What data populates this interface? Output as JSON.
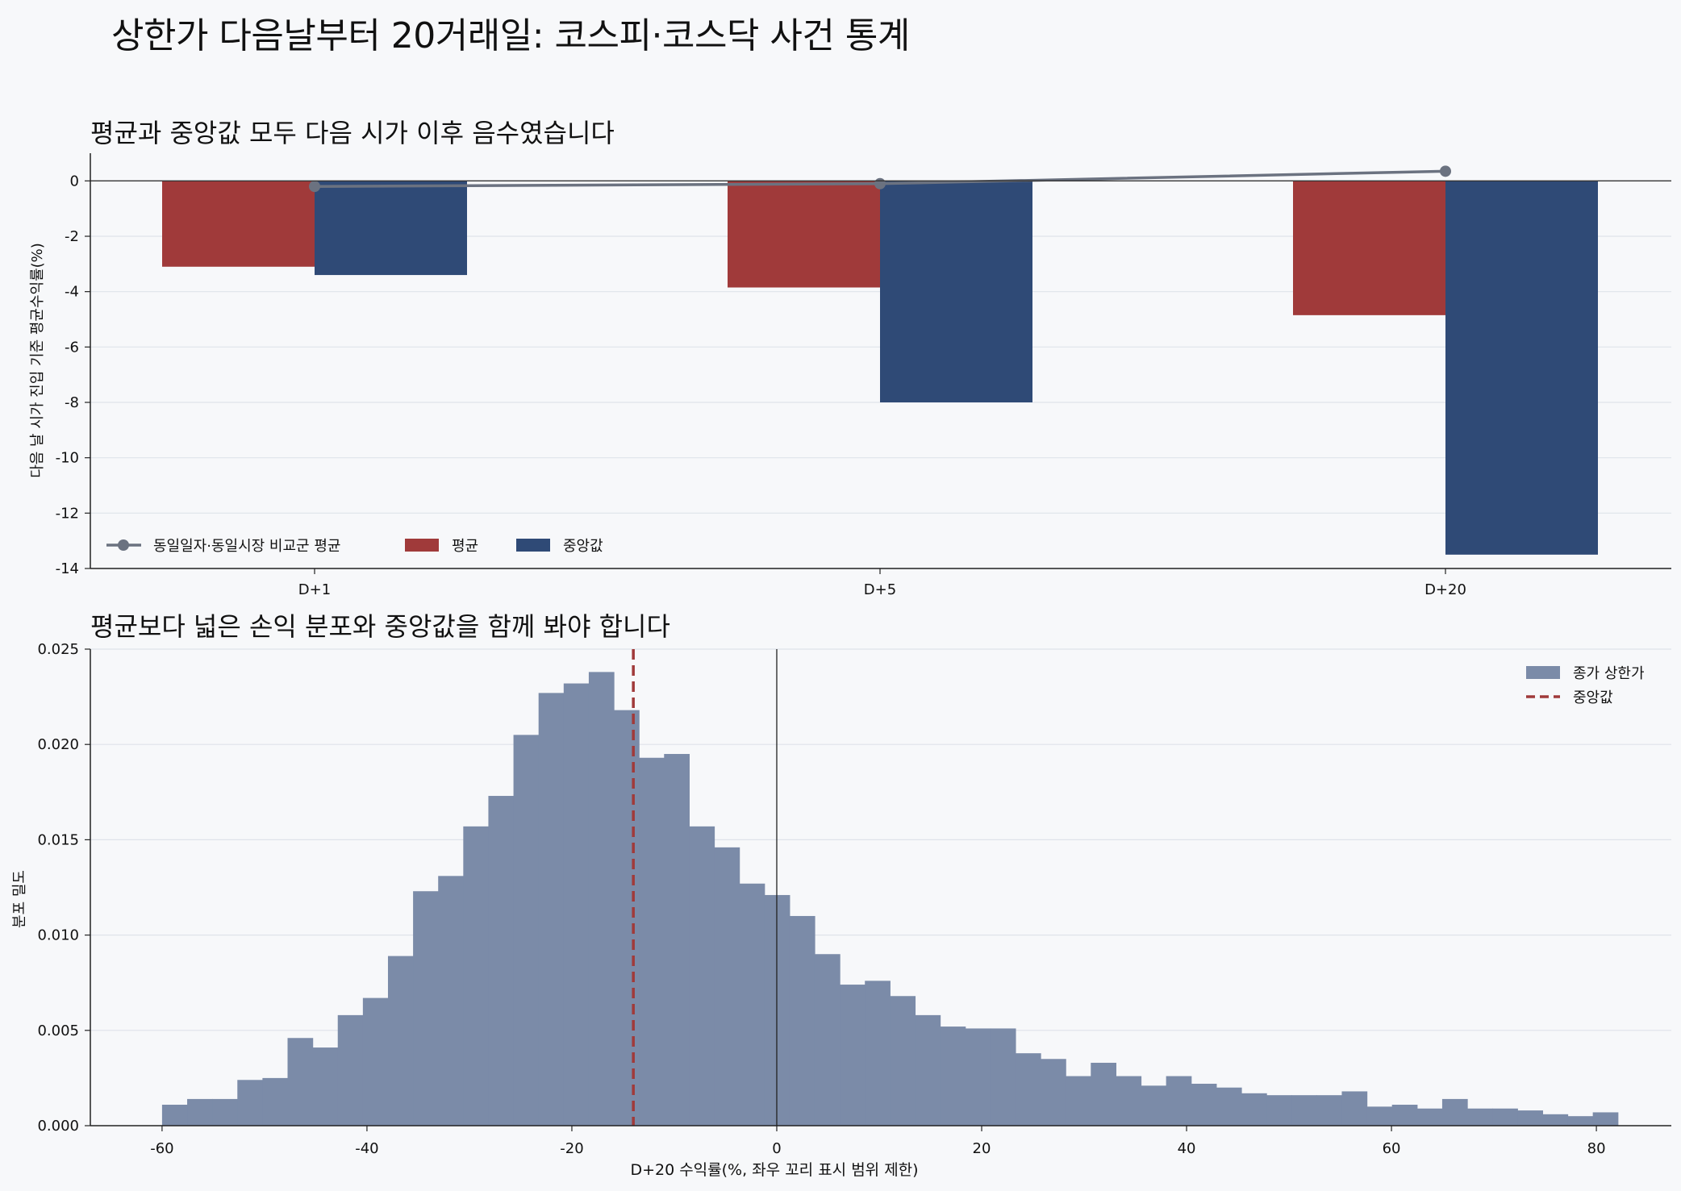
{
  "figure": {
    "title": "상한가 다음날부터 20거래일: 코스피·코스닥 사건 통계"
  },
  "chart_data": [
    {
      "type": "bar",
      "title": "평균과 중앙값 모두 다음 시가 이후 음수였습니다",
      "ylabel": "다음 날 시가 진입 기준 평균수익률(%)",
      "categories": [
        "D+1",
        "D+5",
        "D+20"
      ],
      "ylim": [
        -14,
        1
      ],
      "yticks": [
        0,
        -2,
        -4,
        -6,
        -8,
        -10,
        -12,
        -14
      ],
      "series": [
        {
          "name": "평균",
          "kind": "bar",
          "color": "#a03a3a",
          "values": [
            -3.1,
            -3.85,
            -4.85
          ]
        },
        {
          "name": "중앙값",
          "kind": "bar",
          "color": "#2f4a76",
          "values": [
            -3.4,
            -8.0,
            -13.5
          ]
        },
        {
          "name": "동일일자·동일시장 비교군 평균",
          "kind": "line",
          "color": "#6b7280",
          "values": [
            -0.2,
            -0.1,
            0.35
          ]
        }
      ],
      "legend": "lower-left",
      "grid": "y"
    },
    {
      "type": "histogram",
      "title": "평균보다 넓은 손익 분포와 중앙값을 함께 봐야 합니다",
      "xlabel": "D+20 수익률(%, 좌우 꼬리 표시 범위 제한)",
      "ylabel": "분포 밀도",
      "xlim": [
        -67,
        87
      ],
      "ylim": [
        0,
        0.025
      ],
      "xticks": [
        -60,
        -40,
        -20,
        0,
        20,
        40,
        60,
        80
      ],
      "yticks": [
        "0.000",
        "0.005",
        "0.010",
        "0.015",
        "0.020",
        "0.025"
      ],
      "bin_start": -60,
      "bin_width": 2.45,
      "densities": [
        0.0011,
        0.0014,
        0.0014,
        0.0024,
        0.0025,
        0.0046,
        0.0041,
        0.0058,
        0.0067,
        0.0089,
        0.0123,
        0.0131,
        0.0157,
        0.0173,
        0.0205,
        0.0227,
        0.0232,
        0.0238,
        0.0218,
        0.0193,
        0.0195,
        0.0157,
        0.0146,
        0.0127,
        0.0121,
        0.011,
        0.009,
        0.0074,
        0.0076,
        0.0068,
        0.0058,
        0.0052,
        0.0051,
        0.0051,
        0.0038,
        0.0035,
        0.0026,
        0.0033,
        0.0026,
        0.0021,
        0.0026,
        0.0022,
        0.002,
        0.0017,
        0.0016,
        0.0016,
        0.0016,
        0.0018,
        0.001,
        0.0011,
        0.0009,
        0.0014,
        0.0009,
        0.0009,
        0.0008,
        0.0006,
        0.0005,
        0.0007
      ],
      "median": -14,
      "series_name": "종가 상한가",
      "median_label": "중앙값",
      "bar_color": "#7b8ba8",
      "median_color": "#a03a3a",
      "legend": "upper-right",
      "grid": "y"
    }
  ]
}
